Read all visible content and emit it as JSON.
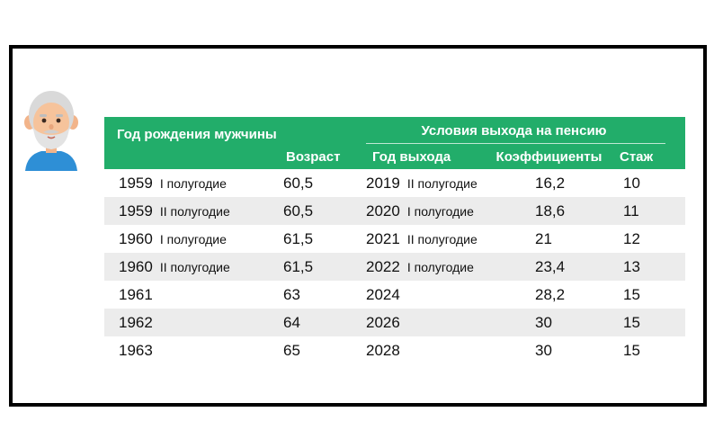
{
  "header": {
    "birth_year_label": "Год рождения мужчины",
    "conditions_label": "Условия выхода на пенсию",
    "columns": {
      "age": "Возраст",
      "exit_year": "Год выхода",
      "coefficients": "Коэффициенты",
      "stazh": "Стаж"
    }
  },
  "rows": [
    {
      "birth_year": "1959",
      "birth_half": "I полугодие",
      "age": "60,5",
      "exit_year": "2019",
      "exit_half": "II полугодие",
      "coefficient": "16,2",
      "stazh": "10"
    },
    {
      "birth_year": "1959",
      "birth_half": "II полугодие",
      "age": "60,5",
      "exit_year": "2020",
      "exit_half": "I полугодие",
      "coefficient": "18,6",
      "stazh": "11"
    },
    {
      "birth_year": "1960",
      "birth_half": "I полугодие",
      "age": "61,5",
      "exit_year": "2021",
      "exit_half": "II полугодие",
      "coefficient": "21",
      "stazh": "12"
    },
    {
      "birth_year": "1960",
      "birth_half": "II полугодие",
      "age": "61,5",
      "exit_year": "2022",
      "exit_half": "I полугодие",
      "coefficient": "23,4",
      "stazh": "13"
    },
    {
      "birth_year": "1961",
      "birth_half": "",
      "age": "63",
      "exit_year": "2024",
      "exit_half": "",
      "coefficient": "28,2",
      "stazh": "15"
    },
    {
      "birth_year": "1962",
      "birth_half": "",
      "age": "64",
      "exit_year": "2026",
      "exit_half": "",
      "coefficient": "30",
      "stazh": "15"
    },
    {
      "birth_year": "1963",
      "birth_half": "",
      "age": "65",
      "exit_year": "2028",
      "exit_half": "",
      "coefficient": "30",
      "stazh": "15"
    }
  ],
  "icons": {
    "avatar": "elderly-man-icon"
  },
  "colors": {
    "header_green": "#22ad6a",
    "row_shade": "#ececec",
    "frame": "#000000"
  }
}
